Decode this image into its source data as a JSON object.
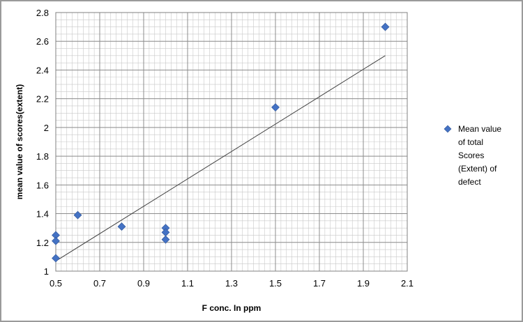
{
  "chart_data": {
    "type": "scatter",
    "title": "",
    "xlabel": "F conc. In ppm",
    "ylabel": "mean value of scores(extent)",
    "xlim": [
      0.5,
      2.1
    ],
    "ylim": [
      1,
      2.8
    ],
    "x_ticks": [
      "0.5",
      "0.7",
      "0.9",
      "1.1",
      "1.3",
      "1.5",
      "1.7",
      "1.9",
      "2.1"
    ],
    "y_ticks": [
      "1",
      "1.2",
      "1.4",
      "1.6",
      "1.8",
      "2",
      "2.2",
      "2.4",
      "2.6",
      "2.8"
    ],
    "grid": true,
    "legend_position": "right",
    "series": [
      {
        "name": "Mean value of total Scores (Extent) of defect",
        "legend_lines": [
          "Mean value",
          "of total",
          "Scores",
          "(Extent) of",
          "defect"
        ],
        "color": "#4472C4",
        "marker": "diamond",
        "points": [
          {
            "x": 0.5,
            "y": 1.25
          },
          {
            "x": 0.5,
            "y": 1.21
          },
          {
            "x": 0.5,
            "y": 1.09
          },
          {
            "x": 0.6,
            "y": 1.39
          },
          {
            "x": 0.8,
            "y": 1.31
          },
          {
            "x": 1.0,
            "y": 1.3
          },
          {
            "x": 1.0,
            "y": 1.27
          },
          {
            "x": 1.0,
            "y": 1.22
          },
          {
            "x": 1.5,
            "y": 2.14
          },
          {
            "x": 2.0,
            "y": 2.7
          }
        ]
      }
    ],
    "trendline": {
      "type": "linear",
      "color": "#404040",
      "from": {
        "x": 0.5,
        "y": 1.07
      },
      "to": {
        "x": 2.0,
        "y": 2.5
      }
    }
  }
}
